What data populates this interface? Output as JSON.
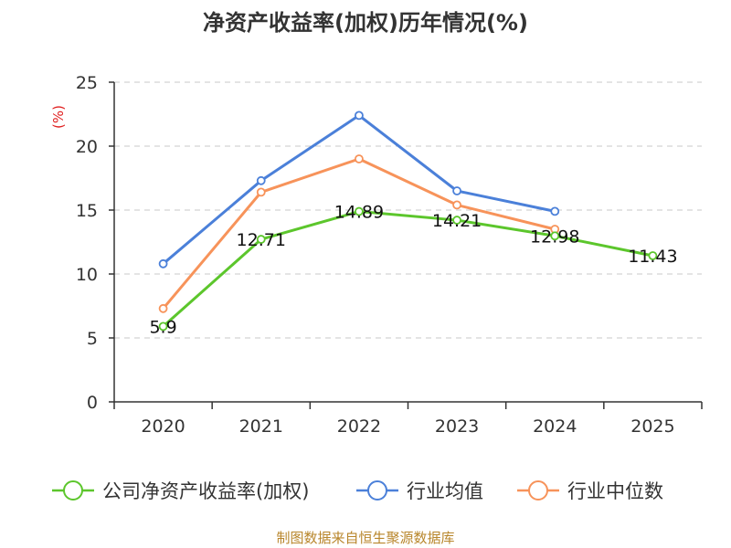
{
  "chart_data": {
    "type": "line",
    "title": "净资产收益率(加权)历年情况(%)",
    "ylabel": "(%)",
    "xlabel": "",
    "categories": [
      "2020",
      "2021",
      "2022",
      "2023",
      "2024",
      "2025"
    ],
    "ylim": [
      0,
      25
    ],
    "yticks": [
      0,
      5,
      10,
      15,
      20,
      25
    ],
    "grid": true,
    "legend_position": "bottom",
    "series": [
      {
        "name": "公司净资产收益率(加权)",
        "color": "#5cc62c",
        "values": [
          5.9,
          12.71,
          14.89,
          14.21,
          12.98,
          11.43
        ],
        "labels": [
          "5.9",
          "12.71",
          "14.89",
          "14.21",
          "12.98",
          "11.43"
        ]
      },
      {
        "name": "行业均值",
        "color": "#4b80d9",
        "values": [
          10.8,
          17.3,
          22.4,
          16.5,
          14.9,
          null
        ]
      },
      {
        "name": "行业中位数",
        "color": "#f7935a",
        "values": [
          7.3,
          16.4,
          19.0,
          15.4,
          13.5,
          null
        ]
      }
    ]
  },
  "source": "制图数据来自恒生聚源数据库"
}
